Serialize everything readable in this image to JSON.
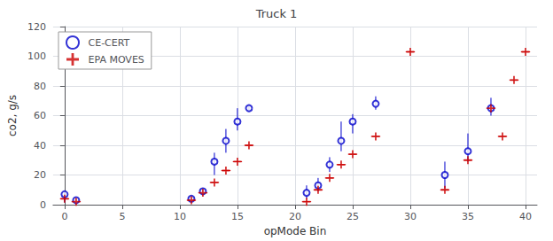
{
  "chart_data": {
    "type": "scatter",
    "title": "Truck 1",
    "xlabel": "opMode Bin",
    "ylabel": "co2, g/s",
    "xlim": [
      -1,
      41
    ],
    "ylim": [
      0,
      120
    ],
    "xticks": [
      0,
      5,
      10,
      15,
      20,
      25,
      30,
      35,
      40
    ],
    "yticks": [
      0,
      20,
      40,
      60,
      80,
      100,
      120
    ],
    "grid": true,
    "legend": "upper left",
    "series": [
      {
        "name": "CE-CERT",
        "color": "#0000cc",
        "marker": "circle",
        "x": [
          0,
          1,
          11,
          12,
          13,
          14,
          15,
          16,
          21,
          22,
          23,
          24,
          25,
          27,
          33,
          35,
          37
        ],
        "values": [
          7,
          3,
          4,
          9,
          29,
          43,
          56,
          65,
          8,
          13,
          27,
          43,
          56,
          68,
          20,
          36,
          65
        ],
        "yerr_lo": [
          5.5,
          0.8,
          1.5,
          2.0,
          9.0,
          8.0,
          6.0,
          2.0,
          4.0,
          4.0,
          5.0,
          7.0,
          8.0,
          4.0,
          9.0,
          7.0,
          5.0
        ],
        "yerr_hi": [
          1.5,
          0.8,
          1.5,
          2.0,
          6.0,
          8.0,
          9.0,
          2.0,
          5.0,
          5.0,
          5.0,
          13.0,
          5.0,
          5.0,
          9.0,
          12.0,
          7.0
        ]
      },
      {
        "name": "EPA MOVES",
        "color": "#cc0000",
        "marker": "plus",
        "x": [
          0,
          1,
          11,
          12,
          13,
          14,
          15,
          16,
          21,
          22,
          23,
          24,
          25,
          27,
          30,
          33,
          35,
          37,
          38,
          39,
          40
        ],
        "values": [
          4,
          2,
          3,
          8,
          15,
          23,
          29,
          40,
          2,
          10,
          18,
          27,
          34,
          46,
          103,
          10,
          30,
          65,
          46,
          84,
          103
        ],
        "xerr_lo": [
          0.4,
          0.4,
          0.4,
          0.4,
          0.4,
          0.4,
          0.4,
          0.4,
          0.4,
          0.4,
          0.4,
          0.4,
          0.4,
          0.4,
          0.4,
          0.4,
          0.4,
          0.4,
          0.4,
          0.4,
          0.4
        ],
        "xerr_hi": [
          0.4,
          0.4,
          0.4,
          0.4,
          0.4,
          0.4,
          0.4,
          0.4,
          0.4,
          0.4,
          0.4,
          0.4,
          0.4,
          0.4,
          0.4,
          0.4,
          0.4,
          0.4,
          0.4,
          0.4,
          0.4
        ]
      }
    ]
  }
}
